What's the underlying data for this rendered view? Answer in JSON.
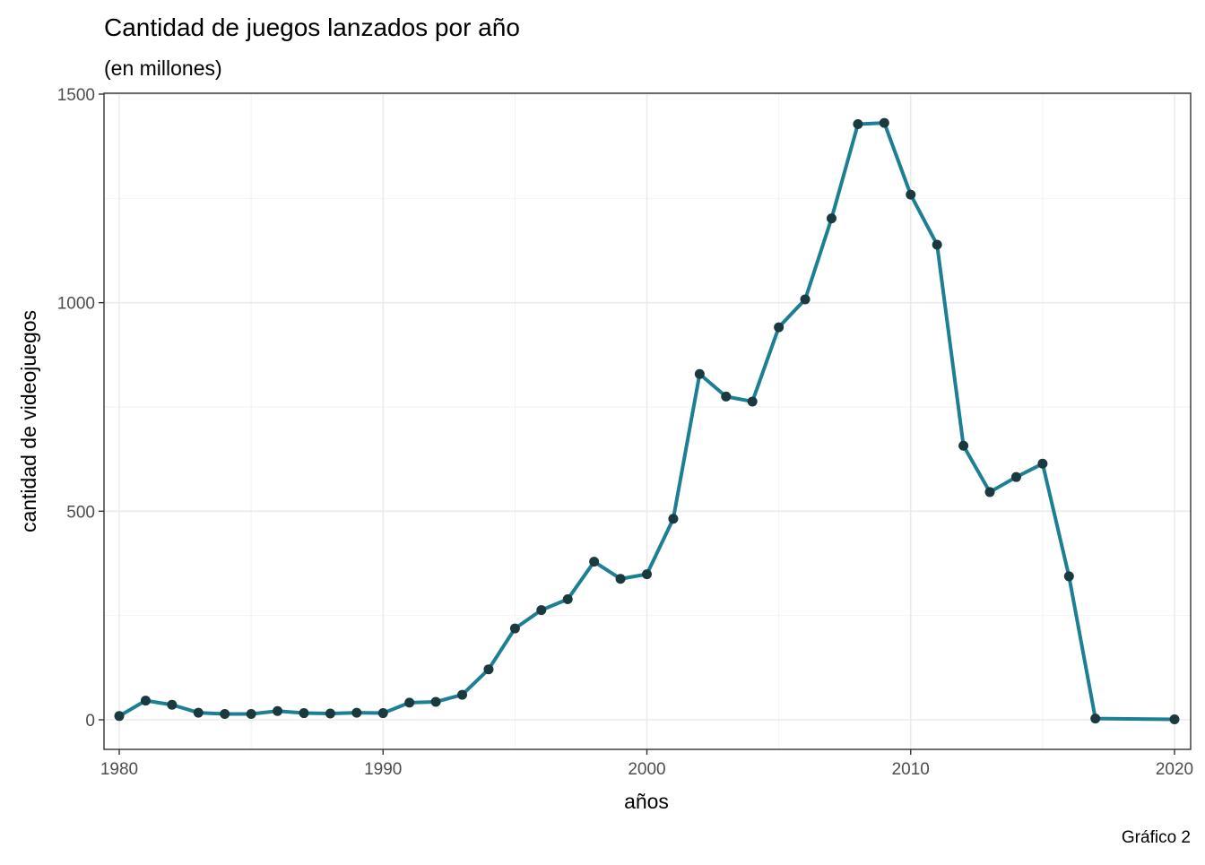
{
  "chart_data": {
    "type": "line",
    "title": "Cantidad de juegos lanzados por año",
    "subtitle": "(en millones)",
    "xlabel": "años",
    "ylabel": "cantidad de videojuegos",
    "caption": "Gráfico 2",
    "xlim": [
      1980,
      2020
    ],
    "ylim": [
      0,
      1500
    ],
    "xticks": [
      1980,
      1990,
      2000,
      2010,
      2020
    ],
    "yticks": [
      0,
      500,
      1000,
      1500
    ],
    "grid": true,
    "legend": "none",
    "line_color": "#1C7F93",
    "point_color": "#1B3A40",
    "x": [
      1980,
      1981,
      1982,
      1983,
      1984,
      1985,
      1986,
      1987,
      1988,
      1989,
      1990,
      1991,
      1992,
      1993,
      1994,
      1995,
      1996,
      1997,
      1998,
      1999,
      2000,
      2001,
      2002,
      2003,
      2004,
      2005,
      2006,
      2007,
      2008,
      2009,
      2010,
      2011,
      2012,
      2013,
      2014,
      2015,
      2016,
      2017,
      2020
    ],
    "series": [
      {
        "values": [
          9,
          46,
          36,
          17,
          14,
          14,
          21,
          16,
          15,
          17,
          16,
          41,
          43,
          60,
          121,
          219,
          263,
          289,
          379,
          338,
          349,
          482,
          829,
          775,
          763,
          941,
          1008,
          1202,
          1428,
          1431,
          1259,
          1139,
          657,
          546,
          582,
          614,
          344,
          3,
          1
        ]
      }
    ]
  }
}
